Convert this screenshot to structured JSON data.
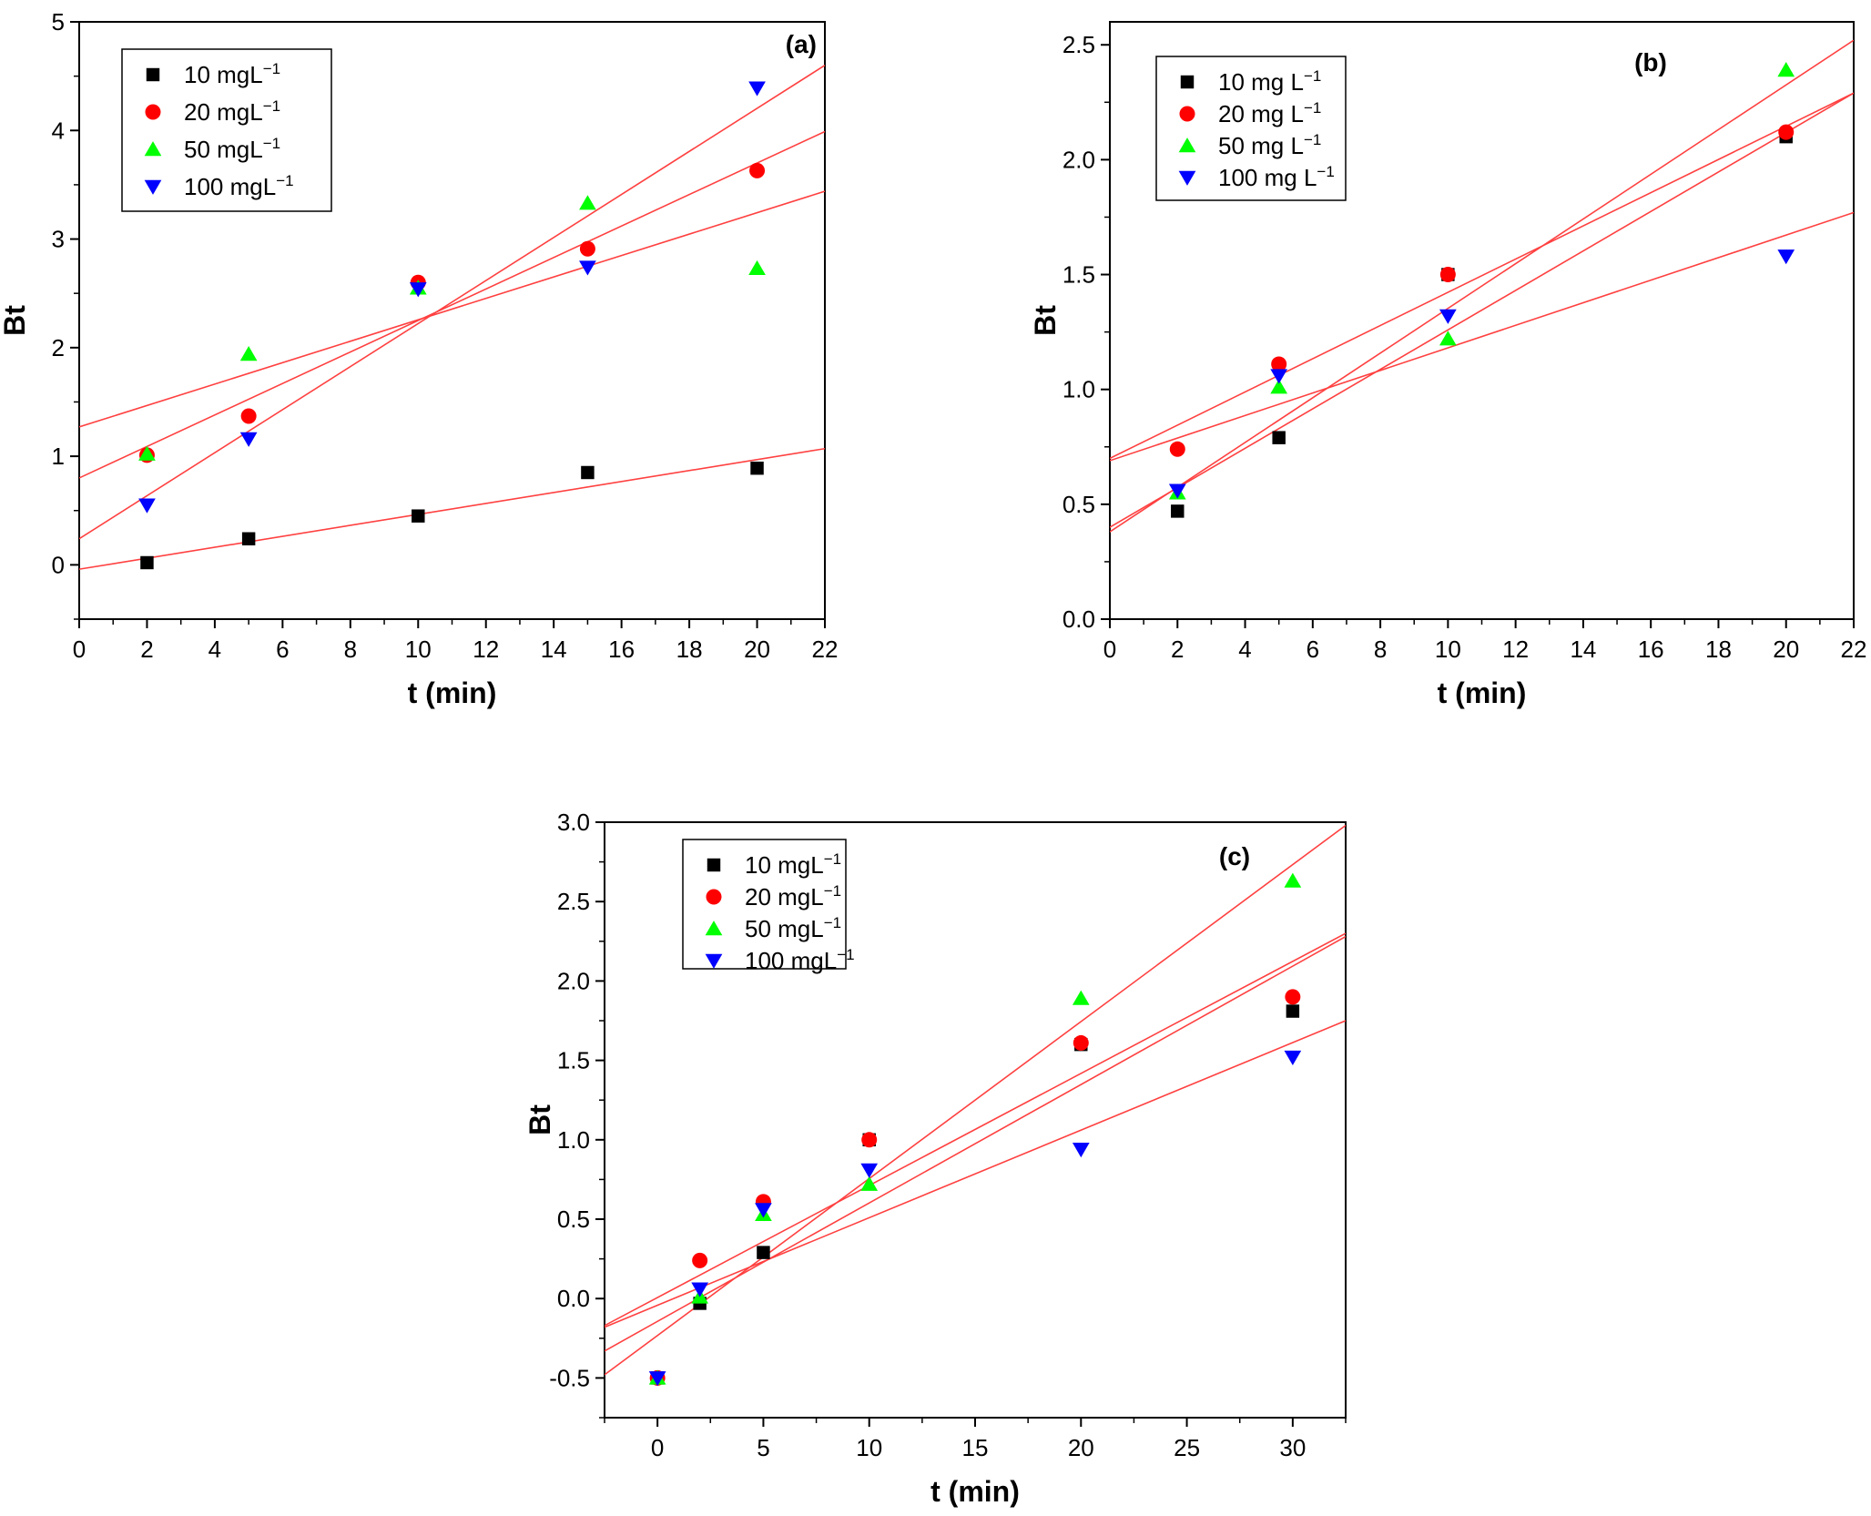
{
  "colors": {
    "s10": "#000000",
    "s20": "#ff0000",
    "s50": "#00ff00",
    "s100": "#0000ff",
    "fit": "#ff4040"
  },
  "chart_data": [
    {
      "panel": "(a)",
      "type": "scatter",
      "xlabel": "t (min)",
      "ylabel": "Bt",
      "xlim": [
        0,
        22
      ],
      "ylim": [
        -0.5,
        5
      ],
      "xticks": [
        0,
        2,
        4,
        6,
        8,
        10,
        12,
        14,
        16,
        18,
        20,
        22
      ],
      "xtick_labels": [
        "0",
        "2",
        "4",
        "6",
        "8",
        "10",
        "12",
        "14",
        "16",
        "18",
        "20",
        "22"
      ],
      "yticks": [
        0,
        1,
        2,
        3,
        4,
        5
      ],
      "ytick_labels": [
        "0",
        "1",
        "2",
        "3",
        "4",
        "5"
      ],
      "legend_position": "top-left",
      "series": [
        {
          "name": "10 mgL",
          "sup": "−1",
          "marker": "square",
          "color_key": "s10",
          "x": [
            2,
            5,
            10,
            15,
            20
          ],
          "y": [
            0.02,
            0.24,
            0.45,
            0.85,
            0.89
          ]
        },
        {
          "name": "20 mgL",
          "sup": "−1",
          "marker": "circle",
          "color_key": "s20",
          "x": [
            2,
            5,
            10,
            15,
            20
          ],
          "y": [
            1.01,
            1.37,
            2.6,
            2.91,
            3.63
          ]
        },
        {
          "name": "50 mgL",
          "sup": "−1",
          "marker": "triangle-up",
          "color_key": "s50",
          "x": [
            2,
            5,
            10,
            15,
            20
          ],
          "y": [
            1.02,
            1.94,
            2.55,
            3.33,
            2.73
          ]
        },
        {
          "name": "100 mgL",
          "sup": "−1",
          "marker": "triangle-down",
          "color_key": "s100",
          "x": [
            2,
            5,
            10,
            15,
            20
          ],
          "y": [
            0.55,
            1.16,
            2.54,
            2.74,
            4.39
          ]
        }
      ],
      "fit_lines": [
        {
          "x": [
            0,
            22
          ],
          "y": [
            -0.04,
            1.07
          ]
        },
        {
          "x": [
            0,
            22
          ],
          "y": [
            0.8,
            3.99
          ]
        },
        {
          "x": [
            0,
            22
          ],
          "y": [
            1.27,
            3.44
          ]
        },
        {
          "x": [
            0,
            22
          ],
          "y": [
            0.24,
            4.6
          ]
        }
      ]
    },
    {
      "panel": "(b)",
      "type": "scatter",
      "xlabel": "t (min)",
      "ylabel": "Bt",
      "xlim": [
        0,
        22
      ],
      "ylim": [
        0,
        2.6
      ],
      "xticks": [
        0,
        2,
        4,
        6,
        8,
        10,
        12,
        14,
        16,
        18,
        20,
        22
      ],
      "xtick_labels": [
        "0",
        "2",
        "4",
        "6",
        "8",
        "10",
        "12",
        "14",
        "16",
        "18",
        "20",
        "22"
      ],
      "yticks": [
        0,
        0.5,
        1.0,
        1.5,
        2.0,
        2.5
      ],
      "ytick_labels": [
        "0.0",
        "0.5",
        "1.0",
        "1.5",
        "2.0",
        "2.5"
      ],
      "legend_position": "top-left",
      "series": [
        {
          "name": "10 mg L",
          "sup": "−1",
          "marker": "square",
          "color_key": "s10",
          "x": [
            2,
            5,
            10,
            20
          ],
          "y": [
            0.47,
            0.79,
            1.5,
            2.1
          ]
        },
        {
          "name": "20 mg L",
          "sup": "−1",
          "marker": "circle",
          "color_key": "s20",
          "x": [
            2,
            5,
            10,
            20
          ],
          "y": [
            0.74,
            1.11,
            1.5,
            2.12
          ]
        },
        {
          "name": "50 mg L",
          "sup": "−1",
          "marker": "triangle-up",
          "color_key": "s50",
          "x": [
            2,
            5,
            10,
            20
          ],
          "y": [
            0.55,
            1.01,
            1.22,
            2.39
          ]
        },
        {
          "name": "100 mg L",
          "sup": "−1",
          "marker": "triangle-down",
          "color_key": "s100",
          "x": [
            2,
            5,
            10,
            20
          ],
          "y": [
            0.56,
            1.06,
            1.32,
            1.58
          ]
        }
      ],
      "fit_lines": [
        {
          "x": [
            0,
            22
          ],
          "y": [
            0.4,
            2.29
          ]
        },
        {
          "x": [
            0,
            22
          ],
          "y": [
            0.7,
            2.29
          ]
        },
        {
          "x": [
            0,
            22
          ],
          "y": [
            0.38,
            2.52
          ]
        },
        {
          "x": [
            0,
            22
          ],
          "y": [
            0.69,
            1.77
          ]
        }
      ]
    },
    {
      "panel": "(c)",
      "type": "scatter",
      "xlabel": "t (min)",
      "ylabel": "Bt",
      "xlim": [
        -2.5,
        32.5
      ],
      "ylim": [
        -0.75,
        3.0
      ],
      "xticks": [
        0,
        5,
        10,
        15,
        20,
        25,
        30
      ],
      "xtick_labels": [
        "0",
        "5",
        "10",
        "15",
        "20",
        "25",
        "30"
      ],
      "yticks": [
        -0.5,
        0,
        0.5,
        1.0,
        1.5,
        2.0,
        2.5,
        3.0
      ],
      "ytick_labels": [
        "-0.5",
        "0.0",
        "0.5",
        "1.0",
        "1.5",
        "2.0",
        "2.5",
        "3.0"
      ],
      "legend_position": "top-left",
      "series": [
        {
          "name": "10 mgL",
          "sup": "−1",
          "marker": "square",
          "color_key": "s10",
          "x": [
            0,
            2,
            5,
            10,
            20,
            30
          ],
          "y": [
            -0.5,
            -0.03,
            0.29,
            1.0,
            1.6,
            1.81
          ]
        },
        {
          "name": "20 mgL",
          "sup": "−1",
          "marker": "circle",
          "color_key": "s20",
          "x": [
            0,
            2,
            5,
            10,
            20,
            30
          ],
          "y": [
            -0.5,
            0.24,
            0.61,
            1.0,
            1.61,
            1.9
          ]
        },
        {
          "name": "50 mgL",
          "sup": "−1",
          "marker": "triangle-up",
          "color_key": "s50",
          "x": [
            0,
            2,
            5,
            10,
            20,
            30
          ],
          "y": [
            -0.5,
            0.01,
            0.53,
            0.72,
            1.89,
            2.63
          ]
        },
        {
          "name": "100 mgL",
          "sup": "−1",
          "marker": "triangle-down",
          "color_key": "s100",
          "x": [
            0,
            2,
            5,
            10,
            20,
            30
          ],
          "y": [
            -0.5,
            0.06,
            0.56,
            0.81,
            0.94,
            1.52
          ]
        }
      ],
      "fit_lines": [
        {
          "x": [
            -2.5,
            32.5
          ],
          "y": [
            -0.33,
            2.28
          ]
        },
        {
          "x": [
            -2.5,
            32.5
          ],
          "y": [
            -0.17,
            2.3
          ]
        },
        {
          "x": [
            -2.5,
            32.5
          ],
          "y": [
            -0.48,
            2.98
          ]
        },
        {
          "x": [
            -2.5,
            32.5
          ],
          "y": [
            -0.18,
            1.75
          ]
        }
      ]
    }
  ]
}
